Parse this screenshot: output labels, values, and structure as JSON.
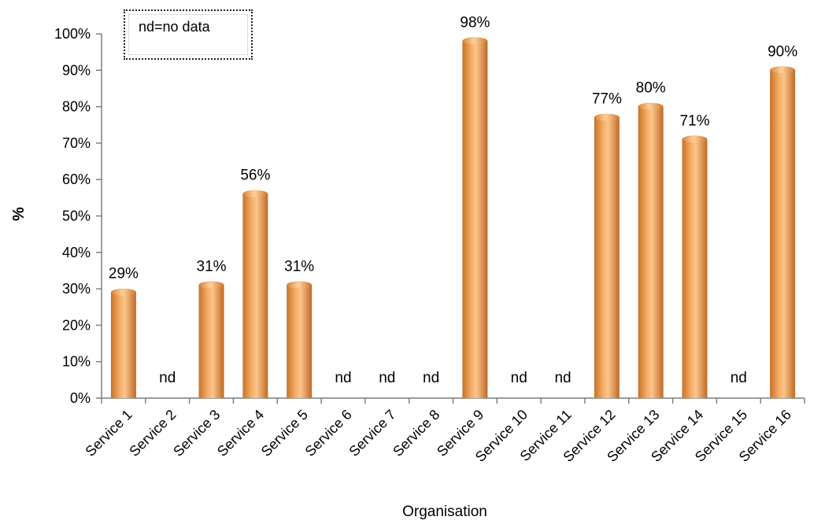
{
  "chart_data": {
    "type": "bar",
    "title": "",
    "xlabel": "Organisation",
    "ylabel": "%",
    "ylim": [
      0,
      100
    ],
    "yticks": [
      "0%",
      "10%",
      "20%",
      "30%",
      "40%",
      "50%",
      "60%",
      "70%",
      "80%",
      "90%",
      "100%"
    ],
    "categories": [
      "Service 1",
      "Service 2",
      "Service 3",
      "Service 4",
      "Service 5",
      "Service 6",
      "Service 7",
      "Service 8",
      "Service 9",
      "Service 10",
      "Service 11",
      "Service 12",
      "Service 13",
      "Service 14",
      "Service 15",
      "Service 16"
    ],
    "values": [
      29,
      null,
      31,
      56,
      31,
      null,
      null,
      null,
      98,
      null,
      null,
      77,
      80,
      71,
      null,
      90
    ],
    "data_labels": [
      "29%",
      "nd",
      "31%",
      "56%",
      "31%",
      "nd",
      "nd",
      "nd",
      "98%",
      "nd",
      "nd",
      "77%",
      "80%",
      "71%",
      "nd",
      "90%"
    ],
    "bar_color": "#f0a055",
    "grid": false,
    "legend_note": "nd=no data"
  }
}
